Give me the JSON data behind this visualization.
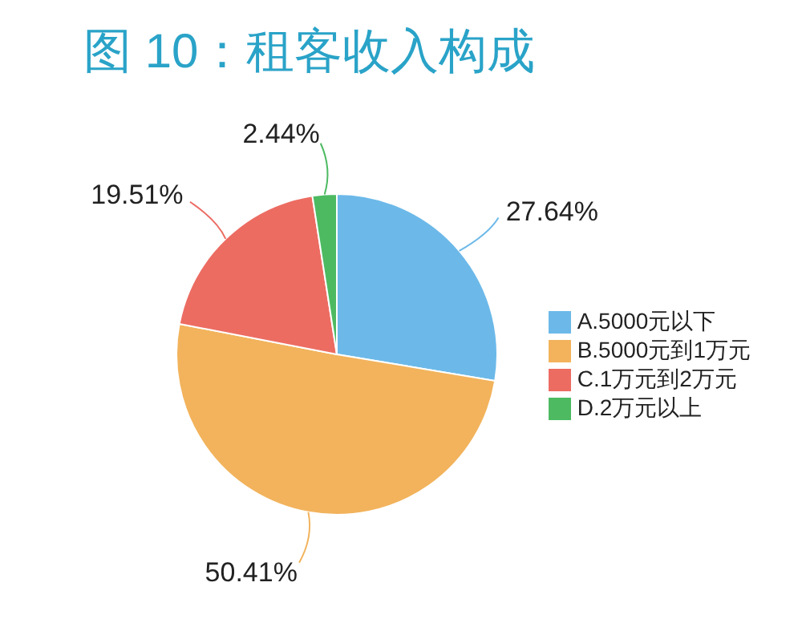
{
  "chart_data": {
    "type": "pie",
    "title": "图 10：租客收入构成",
    "categories": [
      "A.5000元以下",
      "B.5000元到1万元",
      "C.1万元到2万元",
      "D.2万元以上"
    ],
    "values": [
      27.64,
      50.41,
      19.51,
      2.44
    ],
    "colors": [
      "#6cb9e9",
      "#f2b35c",
      "#ec6c62",
      "#4dba62"
    ],
    "value_labels": [
      "27.64%",
      "50.41%",
      "19.51%",
      "2.44%"
    ],
    "legend": "right"
  }
}
